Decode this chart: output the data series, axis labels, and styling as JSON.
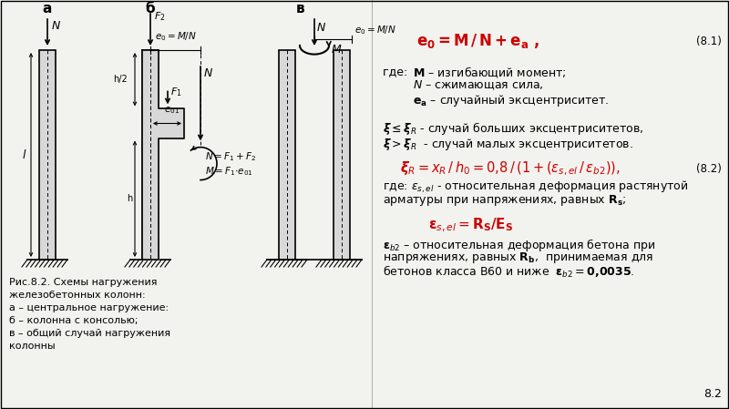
{
  "bg_color": "#f2f2ee",
  "title_a": "а",
  "title_b": "б",
  "title_v": "в",
  "fig_caption_line1": "Рис.8.2. Схемы нагружения",
  "fig_caption_line2": "железобетонных колонн:",
  "fig_caption_line3": "а – центральное нагружение:",
  "fig_caption_line4": "б – колонна с консолью;",
  "fig_caption_line5": "в – общий случай нагружения",
  "fig_caption_line6": "колонны",
  "formula1_num": "(8.1)",
  "formula3_num": "(8.2)",
  "page_num": "8.2",
  "red_color": "#cc0000",
  "black_color": "#000000",
  "col_fill": "#d8d8d8",
  "col_edge": "#000000"
}
